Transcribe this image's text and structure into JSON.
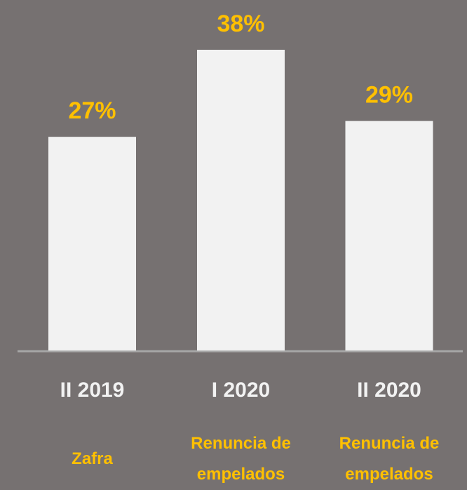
{
  "chart_data": {
    "type": "bar",
    "categories": [
      "II 2019",
      "I 2020",
      "II 2020"
    ],
    "values": [
      27,
      38,
      29
    ],
    "value_labels": [
      "27%",
      "38%",
      "29%"
    ],
    "annotations": [
      "Zafra",
      "Renuncia de empelados",
      "Renuncia de empelados"
    ],
    "color": "#f2f2f2"
  }
}
